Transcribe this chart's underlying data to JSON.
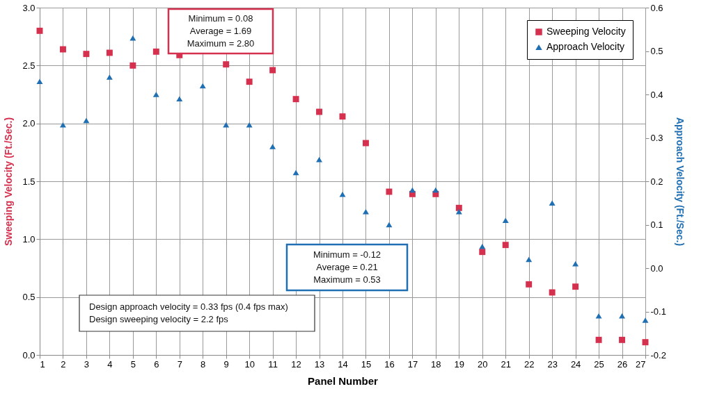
{
  "chart_data": {
    "type": "scatter",
    "xlabel": "Panel Number",
    "ylabel": "Sweeping Velocity (Ft./Sec.)",
    "y2label": "Approach Velocity (Ft./Sec.)",
    "x": [
      1,
      2,
      3,
      4,
      5,
      6,
      7,
      8,
      9,
      10,
      11,
      12,
      13,
      14,
      15,
      16,
      17,
      18,
      19,
      20,
      21,
      22,
      23,
      24,
      25,
      26,
      27
    ],
    "xlim": [
      1,
      27
    ],
    "xticks": [
      1,
      2,
      3,
      4,
      5,
      6,
      7,
      8,
      9,
      10,
      11,
      12,
      13,
      14,
      15,
      16,
      17,
      18,
      19,
      20,
      21,
      22,
      23,
      24,
      25,
      26,
      27
    ],
    "ylim": [
      0,
      3
    ],
    "yticks": [
      {
        "value": 0,
        "label": "0.0"
      },
      {
        "value": 0.5,
        "label": "0.5"
      },
      {
        "value": 1,
        "label": "1.0"
      },
      {
        "value": 1.5,
        "label": "1.5"
      },
      {
        "value": 2,
        "label": "2.0"
      },
      {
        "value": 2.5,
        "label": "2.5"
      },
      {
        "value": 3,
        "label": "3.0"
      }
    ],
    "y2lim": [
      -0.2,
      0.6
    ],
    "y2ticks": [
      {
        "value": -0.2,
        "label": "-0.2"
      },
      {
        "value": -0.1,
        "label": "-0.1"
      },
      {
        "value": 0,
        "label": "0.0"
      },
      {
        "value": 0.1,
        "label": "0.1"
      },
      {
        "value": 0.2,
        "label": "0.2"
      },
      {
        "value": 0.3,
        "label": "0.3"
      },
      {
        "value": 0.4,
        "label": "0.4"
      },
      {
        "value": 0.5,
        "label": "0.5"
      },
      {
        "value": 0.6,
        "label": "0.6"
      }
    ],
    "grid": true,
    "legend": "top right",
    "series": [
      {
        "name": "Sweeping Velocity",
        "color": "#d6304f",
        "marker": "square",
        "values": [
          2.8,
          2.64,
          2.6,
          2.61,
          2.5,
          2.62,
          2.59,
          null,
          2.51,
          2.36,
          2.46,
          2.21,
          2.1,
          2.06,
          1.83,
          1.41,
          1.39,
          1.39,
          1.27,
          0.89,
          0.95,
          0.61,
          0.54,
          0.59,
          0.13,
          0.13,
          0.11
        ]
      },
      {
        "name": "Approach Velocity",
        "color": "#1f6fb2",
        "marker": "triangle",
        "axis": "y2",
        "values": [
          0.43,
          0.33,
          0.34,
          0.44,
          0.53,
          0.4,
          0.39,
          0.42,
          0.33,
          0.33,
          0.28,
          0.22,
          0.25,
          0.17,
          0.13,
          0.1,
          0.18,
          0.18,
          0.13,
          0.05,
          0.11,
          0.02,
          0.15,
          0.01,
          -0.11,
          -0.11,
          -0.12
        ]
      }
    ],
    "annotations": [
      "Minimum =  0.08\nAverage =  1.69\nMaximum =  2.80",
      "Minimum =  -0.12\nAverage = 0.21\nMaximum =  0.53",
      "Design approach velocity = 0.33 fps (0.4 fps max)\nDesign sweeping velocity = 2.2 fps"
    ]
  }
}
